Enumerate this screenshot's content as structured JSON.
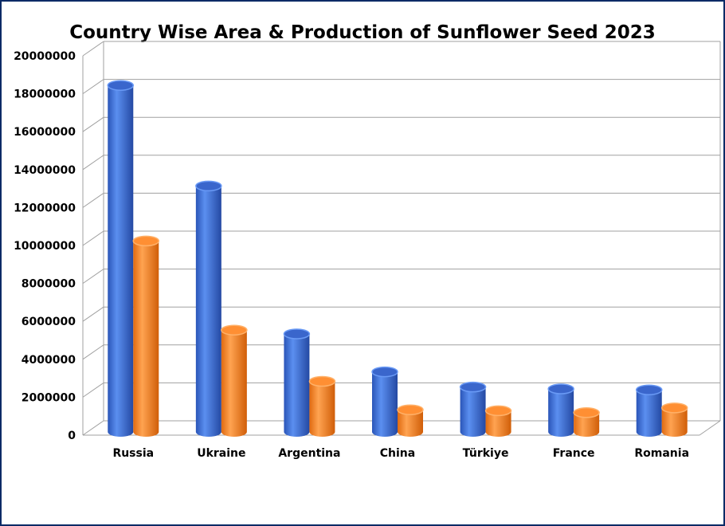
{
  "chart_data": {
    "type": "bar",
    "title": "Country Wise Area & Production of Sunflower Seed 2023",
    "xlabel": "",
    "ylabel": "",
    "categories": [
      "Russia",
      "Ukraine",
      "Argentina",
      "China",
      "Türkiye",
      "France",
      "Romania"
    ],
    "series": [
      {
        "color": "#3f72d9",
        "values": [
          18100000,
          12800000,
          5000000,
          3000000,
          2200000,
          2100000,
          2050000
        ]
      },
      {
        "color": "#ff8a2a",
        "values": [
          9900000,
          5200000,
          2500000,
          1000000,
          950000,
          850000,
          1100000
        ]
      }
    ],
    "ylim": [
      0,
      20000000
    ],
    "yticks": [
      "0",
      "2000000",
      "4000000",
      "6000000",
      "8000000",
      "10000000",
      "12000000",
      "14000000",
      "16000000",
      "18000000",
      "20000000"
    ],
    "grid": true,
    "legend": "none",
    "style": "3d-cylinder"
  },
  "colors": {
    "border": "#0a2a66",
    "grid": "#a0a0a0"
  }
}
